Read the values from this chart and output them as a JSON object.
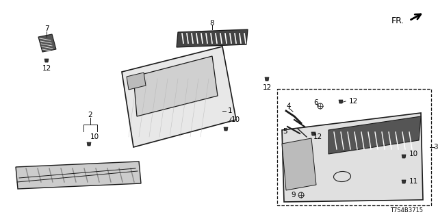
{
  "bg_color": "#ffffff",
  "line_color": "#1a1a1a",
  "diagram_id": "T7S4B3715",
  "fs": 7.5
}
